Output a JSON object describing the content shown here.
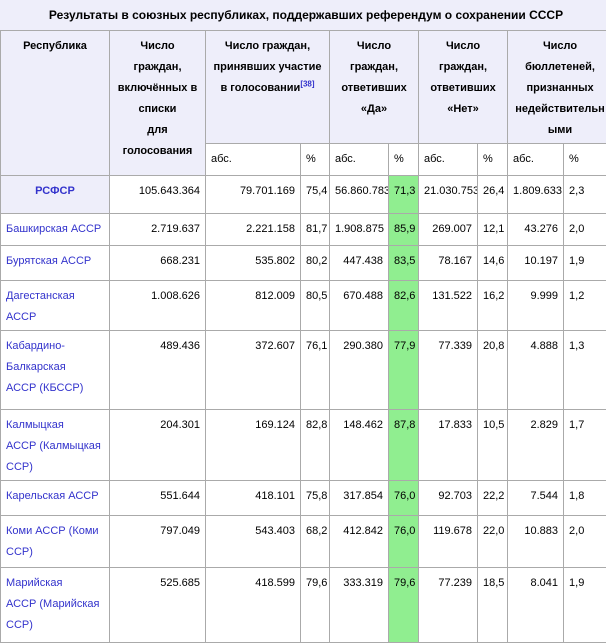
{
  "title": "Результаты в союзных республиках, поддержавших референдум о сохранении СССР",
  "colors": {
    "header_bg": "#EEEEFA",
    "yes_highlight": "#90EE90",
    "border": "#AAAAAA",
    "link": "#3333CC",
    "cell_bg": "#FFFFFF"
  },
  "table": {
    "headers": {
      "republic": "Республика",
      "registered": "Число граждан,\nвключённых в\nсписки\nдля\nголосования",
      "participated": "Число граждан,\nпринявших участие\nв голосовании",
      "participated_ref": "[38]",
      "yes": "Число\nграждан,\nответивших\n«Да»",
      "no": "Число\nграждан,\nответивших\n«Нет»",
      "invalid": "Число\nбюллетеней,\nпризнанных\nнедействительн\nыми",
      "abs": "абс.",
      "pct": "%"
    },
    "rows": [
      {
        "republic": "РСФСР",
        "is_total": true,
        "registered": "105.643.364",
        "part_abs": "79.701.169",
        "part_pct": "75,4",
        "yes_abs": "56.860.783",
        "yes_pct": "71,3",
        "no_abs": "21.030.753",
        "no_pct": "26,4",
        "inv_abs": "1.809.633",
        "inv_pct": "2,3"
      },
      {
        "republic": "Башкирская АССР",
        "is_total": false,
        "registered": "2.719.637",
        "part_abs": "2.221.158",
        "part_pct": "81,7",
        "yes_abs": "1.908.875",
        "yes_pct": "85,9",
        "no_abs": "269.007",
        "no_pct": "12,1",
        "inv_abs": "43.276",
        "inv_pct": "2,0"
      },
      {
        "republic": "Бурятская АССР",
        "is_total": false,
        "registered": "668.231",
        "part_abs": "535.802",
        "part_pct": "80,2",
        "yes_abs": "447.438",
        "yes_pct": "83,5",
        "no_abs": "78.167",
        "no_pct": "14,6",
        "inv_abs": "10.197",
        "inv_pct": "1,9"
      },
      {
        "republic": "Дагестанская\nАССР",
        "is_total": false,
        "registered": "1.008.626",
        "part_abs": "812.009",
        "part_pct": "80,5",
        "yes_abs": "670.488",
        "yes_pct": "82,6",
        "no_abs": "131.522",
        "no_pct": "16,2",
        "inv_abs": "9.999",
        "inv_pct": "1,2"
      },
      {
        "republic": "Кабардино-\nБалкарская\nАССР (КБССР)",
        "is_total": false,
        "registered": "489.436",
        "part_abs": "372.607",
        "part_pct": "76,1",
        "yes_abs": "290.380",
        "yes_pct": "77,9",
        "no_abs": "77.339",
        "no_pct": "20,8",
        "inv_abs": "4.888",
        "inv_pct": "1,3"
      },
      {
        "republic": "Калмыцкая\nАССР (Калмыцкая\nССР)",
        "is_total": false,
        "registered": "204.301",
        "part_abs": "169.124",
        "part_pct": "82,8",
        "yes_abs": "148.462",
        "yes_pct": "87,8",
        "no_abs": "17.833",
        "no_pct": "10,5",
        "inv_abs": "2.829",
        "inv_pct": "1,7"
      },
      {
        "republic": "Карельская АССР",
        "is_total": false,
        "registered": "551.644",
        "part_abs": "418.101",
        "part_pct": "75,8",
        "yes_abs": "317.854",
        "yes_pct": "76,0",
        "no_abs": "92.703",
        "no_pct": "22,2",
        "inv_abs": "7.544",
        "inv_pct": "1,8"
      },
      {
        "republic": "Коми АССР (Коми\nССР)",
        "is_total": false,
        "registered": "797.049",
        "part_abs": "543.403",
        "part_pct": "68,2",
        "yes_abs": "412.842",
        "yes_pct": "76,0",
        "no_abs": "119.678",
        "no_pct": "22,0",
        "inv_abs": "10.883",
        "inv_pct": "2,0"
      },
      {
        "republic": "Марийская\nАССР (Марийская\nССР)",
        "is_total": false,
        "registered": "525.685",
        "part_abs": "418.599",
        "part_pct": "79,6",
        "yes_abs": "333.319",
        "yes_pct": "79,6",
        "no_abs": "77.239",
        "no_pct": "18,5",
        "inv_abs": "8.041",
        "inv_pct": "1,9"
      }
    ]
  }
}
